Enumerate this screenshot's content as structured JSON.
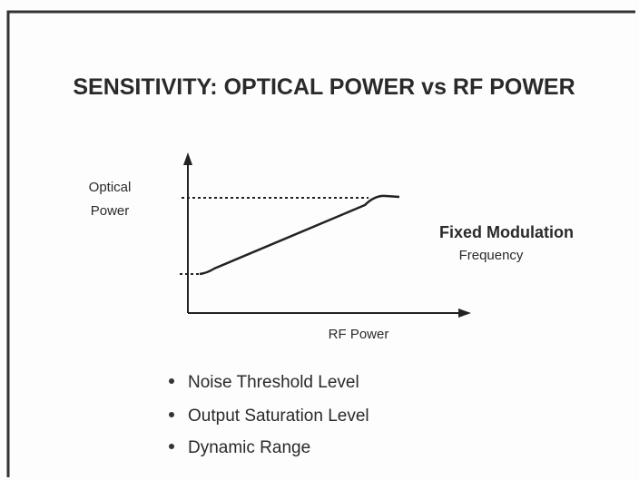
{
  "title": "SENSITIVITY: OPTICAL POWER vs RF POWER",
  "diagram": {
    "y_axis_label": [
      "Optical",
      "Power"
    ],
    "x_axis_label": "RF Power",
    "annotation": [
      "Fixed Modulation",
      "Frequency"
    ]
  },
  "bullets": [
    "Noise Threshold Level",
    "Output Saturation Level",
    "Dynamic Range"
  ]
}
